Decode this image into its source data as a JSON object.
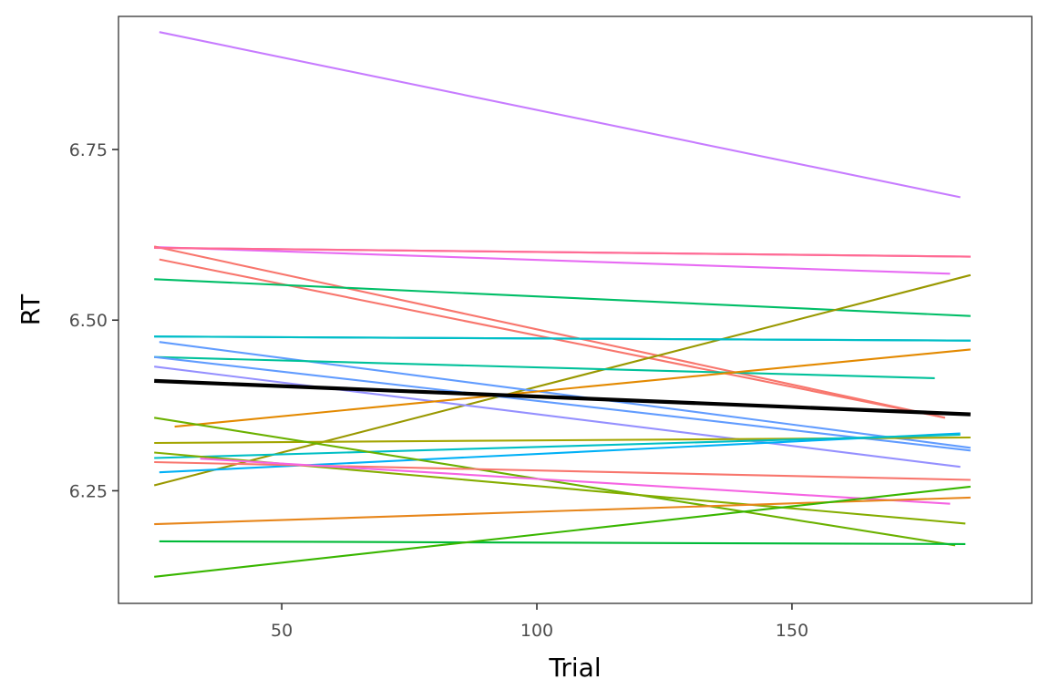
{
  "chart_data": {
    "type": "line",
    "title": "",
    "xlabel": "Trial",
    "ylabel": "RT",
    "xlim": [
      18,
      197
    ],
    "ylim": [
      6.085,
      6.945
    ],
    "xticks": [
      50,
      100,
      150
    ],
    "xtick_labels": [
      "50",
      "100",
      "150"
    ],
    "yticks": [
      6.25,
      6.5,
      6.75
    ],
    "ytick_labels": [
      "6.25",
      "6.50",
      "6.75"
    ],
    "grid": false,
    "legend": "none",
    "series": [
      {
        "color": "#c77cff",
        "x": [
          26,
          183
        ],
        "y": [
          6.922,
          6.68
        ]
      },
      {
        "color": "#e76bf3",
        "x": [
          25,
          181
        ],
        "y": [
          6.607,
          6.568
        ]
      },
      {
        "color": "#f8766d",
        "x": [
          25,
          180
        ],
        "y": [
          6.608,
          6.357
        ]
      },
      {
        "color": "#fd61d1",
        "x": [
          25,
          185
        ],
        "y": [
          6.606,
          6.593
        ]
      },
      {
        "color": "#ff6c91",
        "x": [
          25,
          185
        ],
        "y": [
          6.606,
          6.593
        ]
      },
      {
        "color": "#f8766d",
        "x": [
          26,
          180
        ],
        "y": [
          6.589,
          6.357
        ]
      },
      {
        "color": "#00be67",
        "x": [
          25,
          185
        ],
        "y": [
          6.56,
          6.506
        ]
      },
      {
        "color": "#999800",
        "x": [
          25,
          185
        ],
        "y": [
          6.258,
          6.566
        ]
      },
      {
        "color": "#00a9ff",
        "x": [
          25,
          185
        ],
        "y": [
          6.476,
          6.47
        ]
      },
      {
        "color": "#00bfc4",
        "x": [
          25,
          185
        ],
        "y": [
          6.476,
          6.47
        ]
      },
      {
        "color": "#619cff",
        "x": [
          26,
          185
        ],
        "y": [
          6.468,
          6.313
        ]
      },
      {
        "color": "#00c19a",
        "x": [
          25,
          178
        ],
        "y": [
          6.446,
          6.415
        ]
      },
      {
        "color": "#619cff",
        "x": [
          25,
          185
        ],
        "y": [
          6.446,
          6.309
        ]
      },
      {
        "color": "#9590ff",
        "x": [
          25,
          183
        ],
        "y": [
          6.432,
          6.285
        ]
      },
      {
        "color": "#e38900",
        "x": [
          29,
          185
        ],
        "y": [
          6.344,
          6.457
        ]
      },
      {
        "color": "#a3a500",
        "x": [
          25,
          185
        ],
        "y": [
          6.32,
          6.328
        ]
      },
      {
        "color": "#00b0f6",
        "x": [
          26,
          183
        ],
        "y": [
          6.277,
          6.334
        ]
      },
      {
        "color": "#00bfc4",
        "x": [
          25,
          183
        ],
        "y": [
          6.298,
          6.332
        ]
      },
      {
        "color": "#6bb100",
        "x": [
          25,
          182
        ],
        "y": [
          6.357,
          6.17
        ]
      },
      {
        "color": "#85ad00",
        "x": [
          25,
          184
        ],
        "y": [
          6.306,
          6.202
        ]
      },
      {
        "color": "#f8766d",
        "x": [
          25,
          185
        ],
        "y": [
          6.292,
          6.266
        ]
      },
      {
        "color": "#f564e3",
        "x": [
          34,
          181
        ],
        "y": [
          6.297,
          6.231
        ]
      },
      {
        "color": "#e7861b",
        "x": [
          25,
          185
        ],
        "y": [
          6.201,
          6.24
        ]
      },
      {
        "color": "#00ba38",
        "x": [
          26,
          184
        ],
        "y": [
          6.176,
          6.172
        ]
      },
      {
        "color": "#39b600",
        "x": [
          25,
          185
        ],
        "y": [
          6.124,
          6.256
        ]
      },
      {
        "color": "#000000",
        "width": 4.2,
        "x": [
          25,
          185
        ],
        "y": [
          6.411,
          6.362
        ]
      }
    ]
  }
}
